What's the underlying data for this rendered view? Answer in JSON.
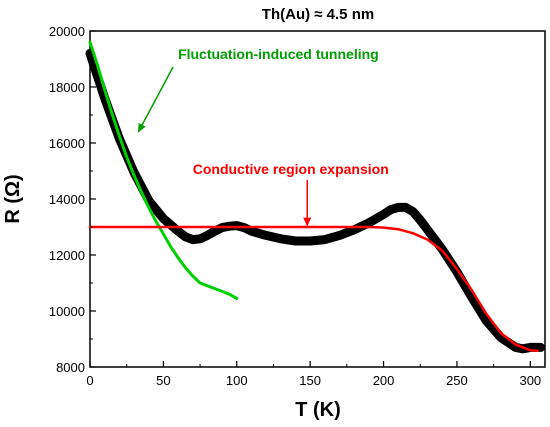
{
  "chart_data": {
    "type": "line",
    "title": "Th(Au) ≈ 4.5 nm",
    "xlabel": "T (K)",
    "ylabel": "R (Ω)",
    "xlim": [
      0,
      310
    ],
    "ylim": [
      8000,
      20000
    ],
    "xticks": [
      0,
      50,
      100,
      150,
      200,
      250,
      300
    ],
    "yticks": [
      8000,
      10000,
      12000,
      14000,
      16000,
      18000,
      20000
    ],
    "grid": false,
    "series": [
      {
        "role": "measured",
        "color": "#000000",
        "x": [
          0,
          5,
          10,
          20,
          30,
          40,
          50,
          60,
          65,
          70,
          75,
          80,
          85,
          90,
          95,
          100,
          105,
          110,
          120,
          130,
          140,
          150,
          160,
          170,
          180,
          190,
          200,
          205,
          210,
          215,
          220,
          225,
          230,
          240,
          250,
          260,
          270,
          280,
          290,
          295,
          300,
          307
        ],
        "y": [
          19200,
          18400,
          17600,
          16150,
          14950,
          13950,
          13300,
          12850,
          12650,
          12550,
          12580,
          12700,
          12850,
          12980,
          13030,
          13050,
          12980,
          12850,
          12700,
          12580,
          12500,
          12500,
          12550,
          12700,
          12900,
          13150,
          13450,
          13620,
          13700,
          13700,
          13550,
          13250,
          12900,
          12200,
          11400,
          10500,
          9650,
          9050,
          8700,
          8650,
          8700,
          8700
        ]
      },
      {
        "name": "Fluctuation-induced tunneling",
        "color": "#00d000",
        "x": [
          0,
          5,
          10,
          15,
          20,
          25,
          30,
          35,
          40,
          45,
          50,
          55,
          60,
          65,
          70,
          75,
          80,
          85,
          90,
          95,
          100
        ],
        "y": [
          19600,
          18800,
          17900,
          17050,
          16250,
          15500,
          14850,
          14250,
          13700,
          13200,
          12750,
          12300,
          11900,
          11550,
          11250,
          11000,
          10900,
          10800,
          10700,
          10600,
          10450
        ]
      },
      {
        "name": "Conductive region expansion",
        "color": "#ff0000",
        "x": [
          0,
          50,
          100,
          150,
          190,
          200,
          210,
          220,
          230,
          240,
          250,
          260,
          270,
          280,
          290,
          300,
          305
        ],
        "y": [
          13000,
          13000,
          13000,
          13000,
          13000,
          12980,
          12920,
          12780,
          12550,
          12150,
          11500,
          10750,
          9900,
          9200,
          8800,
          8600,
          8580
        ]
      }
    ],
    "annotations": [
      {
        "text": "Fluctuation-induced tunneling",
        "color": "#00a000",
        "text_at": [
          60,
          19000
        ],
        "arrow_to": [
          33,
          16400
        ]
      },
      {
        "text": "Conductive region expansion",
        "color": "#ff0000",
        "text_at": [
          70,
          14900
        ],
        "arrow_to": [
          148,
          13050
        ]
      }
    ]
  }
}
